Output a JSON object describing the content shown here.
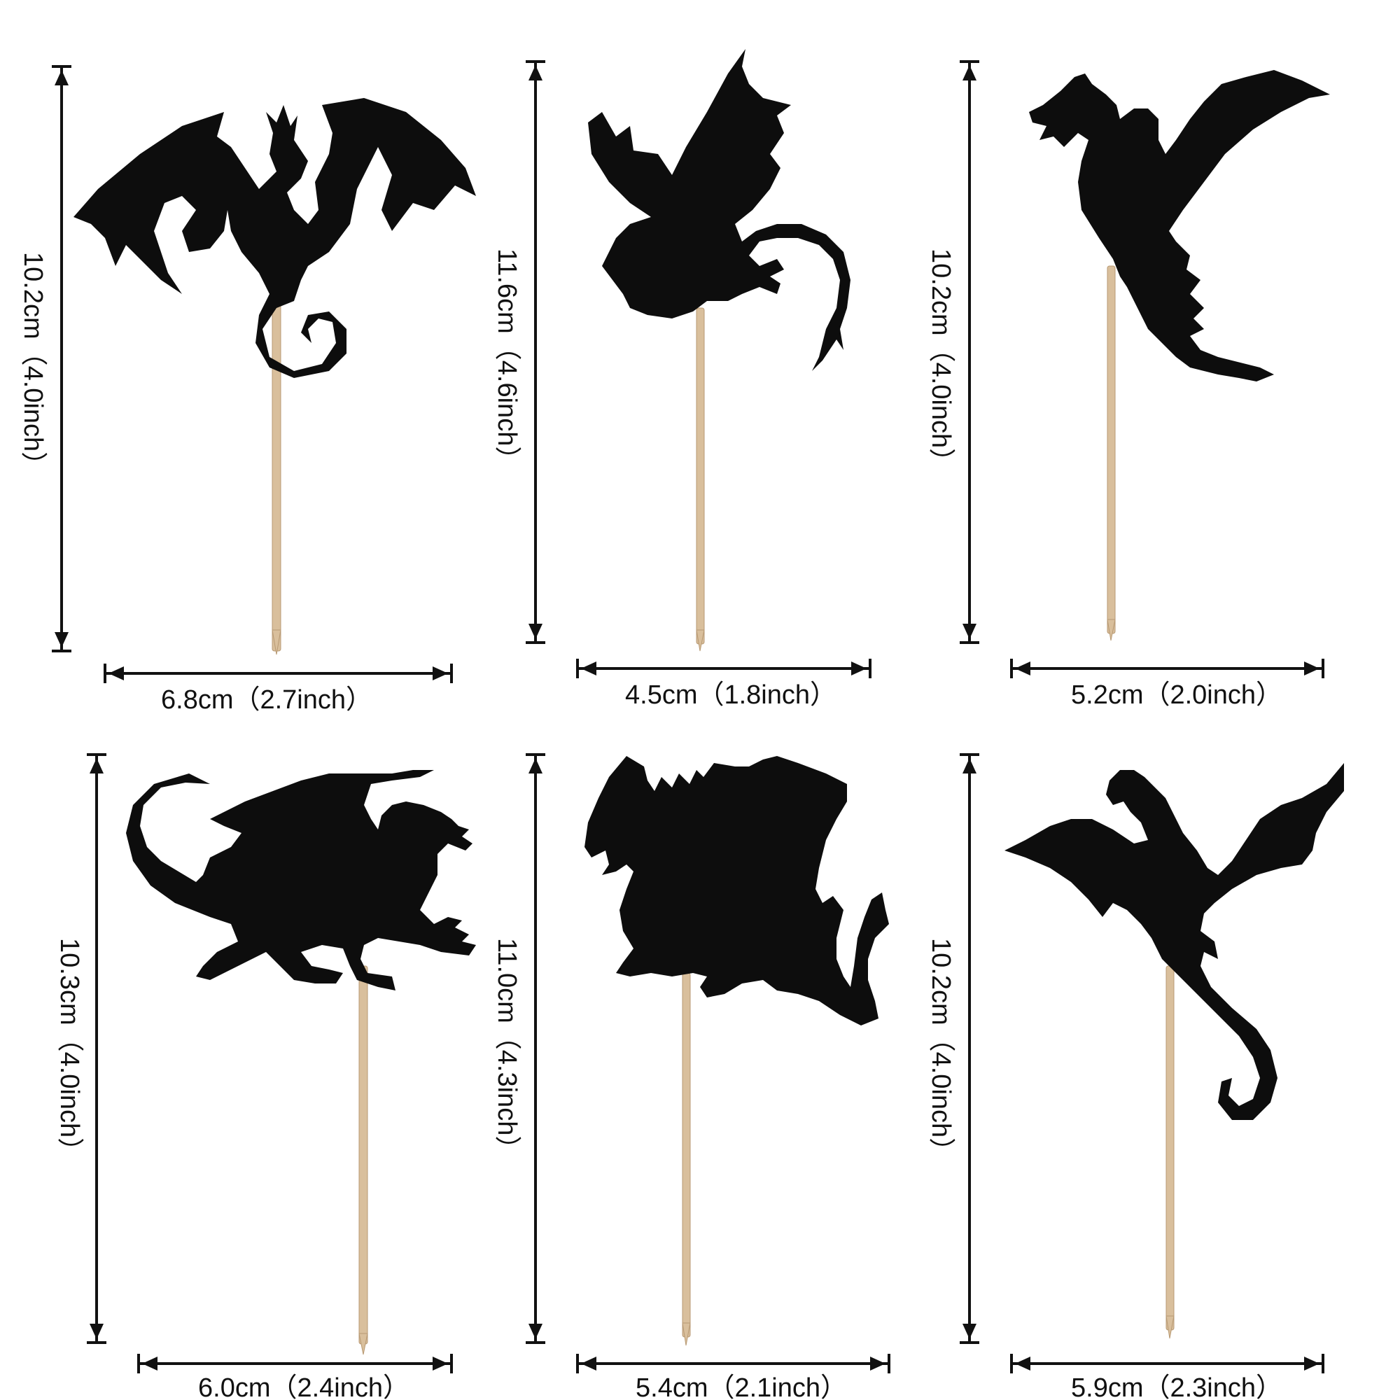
{
  "colors": {
    "silhouette": "#0d0d0d",
    "stick": "#d9bf9c",
    "stick_edge": "#b89a74",
    "arrow": "#111111"
  },
  "toppers": [
    {
      "name": "dragon-topper-1",
      "height_label": "10.2cm（4.0inch）",
      "width_label": "6.8cm（2.7inch）"
    },
    {
      "name": "dragon-topper-2",
      "height_label": "11.6cm（4.6inch）",
      "width_label": "4.5cm（1.8inch）"
    },
    {
      "name": "dragon-topper-3",
      "height_label": "10.2cm（4.0inch）",
      "width_label": "5.2cm（2.0inch）"
    },
    {
      "name": "dragon-topper-4",
      "height_label": "10.3cm（4.0inch）",
      "width_label": "6.0cm（2.4inch）"
    },
    {
      "name": "dragon-topper-5",
      "height_label": "11.0cm（4.3inch）",
      "width_label": "5.4cm（2.1inch）"
    },
    {
      "name": "dragon-topper-6",
      "height_label": "10.2cm（4.0inch）",
      "width_label": "5.9cm（2.3inch）"
    }
  ]
}
